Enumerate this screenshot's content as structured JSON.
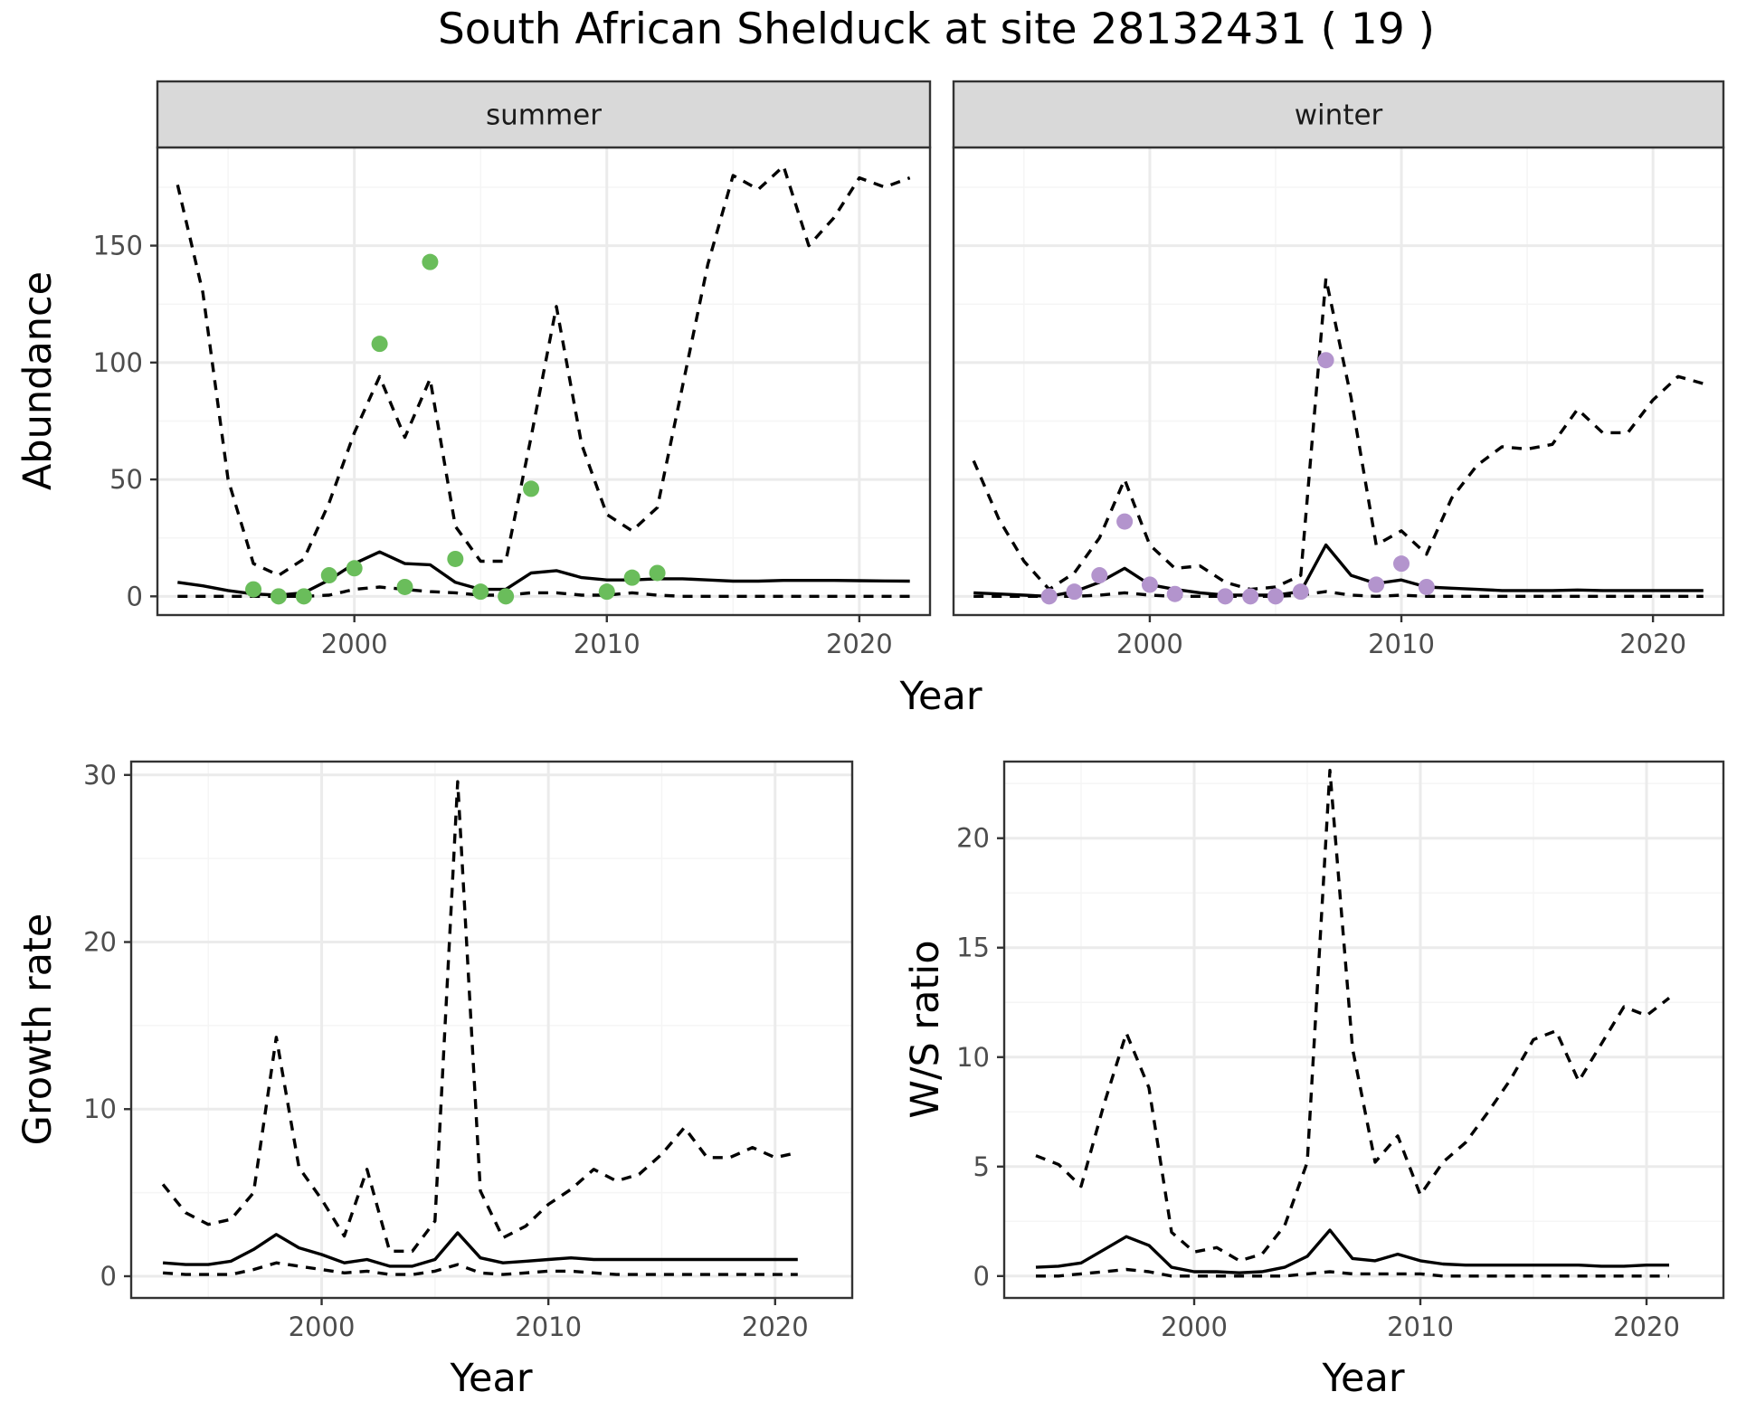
{
  "title": "South African Shelduck at site 28132431 ( 19 )",
  "colors": {
    "summer_points": "#6ABD5B",
    "winter_points": "#B394CD",
    "line": "#000000",
    "grid_major": "#EBEBEB",
    "grid_minor": "#F5F5F5",
    "strip_fill": "#D9D9D9",
    "panel_border": "#333333"
  },
  "line_styles": {
    "solid": "estimate",
    "dashed": "confidence bounds"
  },
  "chart_data": [
    {
      "type": "line",
      "facet": "summer",
      "xlabel": "Year",
      "ylabel": "Abundance",
      "xlim": [
        1992.2,
        2022.8
      ],
      "ylim": [
        -8,
        192
      ],
      "xticks": [
        2000,
        2010,
        2020
      ],
      "yticks": [
        0,
        50,
        100,
        150
      ],
      "grid": true,
      "series": [
        {
          "style": "dashed",
          "x": [
            1993,
            1994,
            1995,
            1996,
            1997,
            1998,
            1999,
            2000,
            2001,
            2002,
            2003,
            2004,
            2005,
            2006,
            2007,
            2008,
            2009,
            2010,
            2011,
            2012,
            2013,
            2014,
            2015,
            2016,
            2017,
            2018,
            2019,
            2020,
            2021,
            2022
          ],
          "values": [
            176,
            130,
            50,
            14,
            9,
            16,
            40,
            70,
            94,
            68,
            93,
            30,
            15,
            15,
            68,
            124,
            65,
            35,
            28,
            38,
            90,
            142,
            180,
            174,
            184,
            150,
            162,
            179,
            175,
            179
          ]
        },
        {
          "style": "solid",
          "x": [
            1993,
            1994,
            1995,
            1996,
            1997,
            1998,
            1999,
            2000,
            2001,
            2002,
            2003,
            2004,
            2005,
            2006,
            2007,
            2008,
            2009,
            2010,
            2011,
            2012,
            2013,
            2014,
            2015,
            2016,
            2017,
            2018,
            2019,
            2020,
            2021,
            2022
          ],
          "values": [
            6,
            4.5,
            2.5,
            1,
            0.5,
            1.5,
            7,
            14,
            19,
            14,
            13.5,
            6,
            3,
            3,
            10,
            11,
            8,
            7,
            7,
            7.5,
            7.5,
            7,
            6.5,
            6.5,
            6.8,
            6.8,
            6.8,
            6.7,
            6.6,
            6.5
          ]
        },
        {
          "style": "dashed",
          "x": [
            1993,
            1994,
            1995,
            1996,
            1997,
            1998,
            1999,
            2000,
            2001,
            2002,
            2003,
            2004,
            2005,
            2006,
            2007,
            2008,
            2009,
            2010,
            2011,
            2012,
            2013,
            2014,
            2015,
            2016,
            2017,
            2018,
            2019,
            2020,
            2021,
            2022
          ],
          "values": [
            0,
            0,
            0,
            0,
            0,
            0,
            0.5,
            3,
            4,
            3,
            2,
            1.5,
            0.5,
            0.5,
            1.5,
            1.5,
            0.5,
            0.5,
            1.5,
            0.5,
            0,
            0,
            0,
            0,
            0,
            0,
            0,
            0,
            0,
            0
          ]
        }
      ],
      "points": {
        "x": [
          1996,
          1997,
          1998,
          1999,
          2000,
          2001,
          2002,
          2003,
          2004,
          2005,
          2006,
          2007,
          2010,
          2011,
          2012
        ],
        "values": [
          3,
          0,
          0,
          9,
          12,
          108,
          4,
          143,
          16,
          2,
          0,
          46,
          2,
          8,
          10
        ]
      }
    },
    {
      "type": "line",
      "facet": "winter",
      "xlabel": "Year",
      "ylabel": "",
      "xlim": [
        1992.2,
        2022.8
      ],
      "ylim": [
        -8,
        192
      ],
      "xticks": [
        2000,
        2010,
        2020
      ],
      "yticks": [
        0,
        50,
        100,
        150
      ],
      "grid": true,
      "series": [
        {
          "style": "dashed",
          "x": [
            1993,
            1994,
            1995,
            1996,
            1997,
            1998,
            1999,
            2000,
            2001,
            2002,
            2003,
            2004,
            2005,
            2006,
            2007,
            2008,
            2009,
            2010,
            2011,
            2012,
            2013,
            2014,
            2015,
            2016,
            2017,
            2018,
            2019,
            2020,
            2021,
            2022
          ],
          "values": [
            58,
            33,
            15,
            3,
            10,
            25,
            50,
            22,
            12,
            13,
            6,
            3,
            4,
            9,
            136,
            85,
            22,
            28,
            18,
            42,
            56,
            64,
            63,
            65,
            80,
            70,
            70,
            84,
            94,
            91
          ]
        },
        {
          "style": "solid",
          "x": [
            1993,
            1994,
            1995,
            1996,
            1997,
            1998,
            1999,
            2000,
            2001,
            2002,
            2003,
            2004,
            2005,
            2006,
            2007,
            2008,
            2009,
            2010,
            2011,
            2012,
            2013,
            2014,
            2015,
            2016,
            2017,
            2018,
            2019,
            2020,
            2021,
            2022
          ],
          "values": [
            1.5,
            1,
            0.5,
            0,
            2,
            6,
            12,
            5,
            3,
            1.5,
            0.5,
            0.5,
            0.5,
            2,
            22,
            9,
            5.5,
            7,
            4,
            3.5,
            3,
            2.5,
            2.5,
            2.5,
            2.7,
            2.5,
            2.5,
            2.5,
            2.5,
            2.5
          ]
        },
        {
          "style": "dashed",
          "x": [
            1993,
            1994,
            1995,
            1996,
            1997,
            1998,
            1999,
            2000,
            2001,
            2002,
            2003,
            2004,
            2005,
            2006,
            2007,
            2008,
            2009,
            2010,
            2011,
            2012,
            2013,
            2014,
            2015,
            2016,
            2017,
            2018,
            2019,
            2020,
            2021,
            2022
          ],
          "values": [
            0,
            0,
            0,
            0,
            0,
            0.5,
            1.5,
            0.5,
            0,
            0,
            0,
            0,
            0,
            0.5,
            2,
            0.5,
            0,
            0.5,
            0,
            0,
            0,
            0,
            0,
            0,
            0,
            0,
            0,
            0,
            0,
            0
          ]
        }
      ],
      "points": {
        "x": [
          1996,
          1997,
          1998,
          1999,
          2000,
          2001,
          2003,
          2004,
          2005,
          2006,
          2007,
          2009,
          2010,
          2011
        ],
        "values": [
          0,
          2,
          9,
          32,
          5,
          1,
          0,
          0,
          0,
          2,
          101,
          5,
          14,
          4
        ]
      }
    },
    {
      "type": "line",
      "facet": "",
      "xlabel": "Year",
      "ylabel": "Growth rate",
      "xlim": [
        1991.6,
        2023.4
      ],
      "ylim": [
        -1.3,
        30.8
      ],
      "xticks": [
        2000,
        2010,
        2020
      ],
      "yticks": [
        0,
        10,
        20,
        30
      ],
      "grid": true,
      "series": [
        {
          "style": "dashed",
          "x": [
            1993,
            1994,
            1995,
            1996,
            1997,
            1998,
            1999,
            2000,
            2001,
            2002,
            2003,
            2004,
            2005,
            2006,
            2007,
            2008,
            2009,
            2010,
            2011,
            2012,
            2013,
            2014,
            2015,
            2016,
            2017,
            2018,
            2019,
            2020,
            2021
          ],
          "values": [
            5.5,
            3.8,
            3.1,
            3.4,
            5,
            14.3,
            6.5,
            4.6,
            2.4,
            6.4,
            1.5,
            1.5,
            3.3,
            29.6,
            5.1,
            2.3,
            3,
            4.3,
            5.2,
            6.4,
            5.7,
            6.1,
            7.3,
            8.9,
            7.1,
            7.1,
            7.7,
            7.1,
            7.4
          ]
        },
        {
          "style": "solid",
          "x": [
            1993,
            1994,
            1995,
            1996,
            1997,
            1998,
            1999,
            2000,
            2001,
            2002,
            2003,
            2004,
            2005,
            2006,
            2007,
            2008,
            2009,
            2010,
            2011,
            2012,
            2013,
            2014,
            2015,
            2016,
            2017,
            2018,
            2019,
            2020,
            2021
          ],
          "values": [
            0.8,
            0.7,
            0.7,
            0.9,
            1.6,
            2.5,
            1.7,
            1.3,
            0.8,
            1,
            0.6,
            0.6,
            1,
            2.6,
            1.1,
            0.8,
            0.9,
            1,
            1.1,
            1,
            1,
            1,
            1,
            1,
            1,
            1,
            1,
            1,
            1
          ]
        },
        {
          "style": "dashed",
          "x": [
            1993,
            1994,
            1995,
            1996,
            1997,
            1998,
            1999,
            2000,
            2001,
            2002,
            2003,
            2004,
            2005,
            2006,
            2007,
            2008,
            2009,
            2010,
            2011,
            2012,
            2013,
            2014,
            2015,
            2016,
            2017,
            2018,
            2019,
            2020,
            2021
          ],
          "values": [
            0.2,
            0.1,
            0.1,
            0.1,
            0.4,
            0.8,
            0.6,
            0.4,
            0.2,
            0.3,
            0.1,
            0.1,
            0.3,
            0.7,
            0.2,
            0.1,
            0.2,
            0.3,
            0.3,
            0.2,
            0.1,
            0.1,
            0.1,
            0.1,
            0.1,
            0.1,
            0.1,
            0.1,
            0.1
          ]
        }
      ]
    },
    {
      "type": "line",
      "facet": "",
      "xlabel": "Year",
      "ylabel": "W/S ratio",
      "xlim": [
        1991.6,
        2023.4
      ],
      "ylim": [
        -1.0,
        23.5
      ],
      "xticks": [
        2000,
        2010,
        2020
      ],
      "yticks": [
        0,
        5,
        10,
        15,
        20
      ],
      "grid": true,
      "series": [
        {
          "style": "dashed",
          "x": [
            1993,
            1994,
            1995,
            1996,
            1997,
            1998,
            1999,
            2000,
            2001,
            2002,
            2003,
            2004,
            2005,
            2006,
            2007,
            2008,
            2009,
            2010,
            2011,
            2012,
            2013,
            2014,
            2015,
            2016,
            2017,
            2018,
            2019,
            2020,
            2021
          ],
          "values": [
            5.5,
            5.1,
            4.1,
            7.8,
            11.1,
            8.6,
            2,
            1.1,
            1.3,
            0.7,
            1,
            2.3,
            5.2,
            23.1,
            10.4,
            5.2,
            6.4,
            3.7,
            5.2,
            6.1,
            7.5,
            9,
            10.8,
            11.2,
            8.9,
            10.6,
            12.3,
            11.9,
            12.7
          ]
        },
        {
          "style": "solid",
          "x": [
            1993,
            1994,
            1995,
            1996,
            1997,
            1998,
            1999,
            2000,
            2001,
            2002,
            2003,
            2004,
            2005,
            2006,
            2007,
            2008,
            2009,
            2010,
            2011,
            2012,
            2013,
            2014,
            2015,
            2016,
            2017,
            2018,
            2019,
            2020,
            2021
          ],
          "values": [
            0.4,
            0.45,
            0.6,
            1.2,
            1.8,
            1.4,
            0.4,
            0.2,
            0.2,
            0.15,
            0.2,
            0.4,
            0.9,
            2.1,
            0.8,
            0.7,
            1,
            0.7,
            0.55,
            0.5,
            0.5,
            0.5,
            0.5,
            0.5,
            0.5,
            0.45,
            0.45,
            0.5,
            0.5
          ]
        },
        {
          "style": "dashed",
          "x": [
            1993,
            1994,
            1995,
            1996,
            1997,
            1998,
            1999,
            2000,
            2001,
            2002,
            2003,
            2004,
            2005,
            2006,
            2007,
            2008,
            2009,
            2010,
            2011,
            2012,
            2013,
            2014,
            2015,
            2016,
            2017,
            2018,
            2019,
            2020,
            2021
          ],
          "values": [
            0,
            0,
            0.1,
            0.2,
            0.3,
            0.2,
            0,
            0,
            0,
            0,
            0,
            0,
            0.1,
            0.2,
            0.1,
            0.1,
            0.1,
            0.1,
            0,
            0,
            0,
            0,
            0,
            0,
            0,
            0,
            0,
            0,
            0
          ]
        }
      ]
    }
  ]
}
